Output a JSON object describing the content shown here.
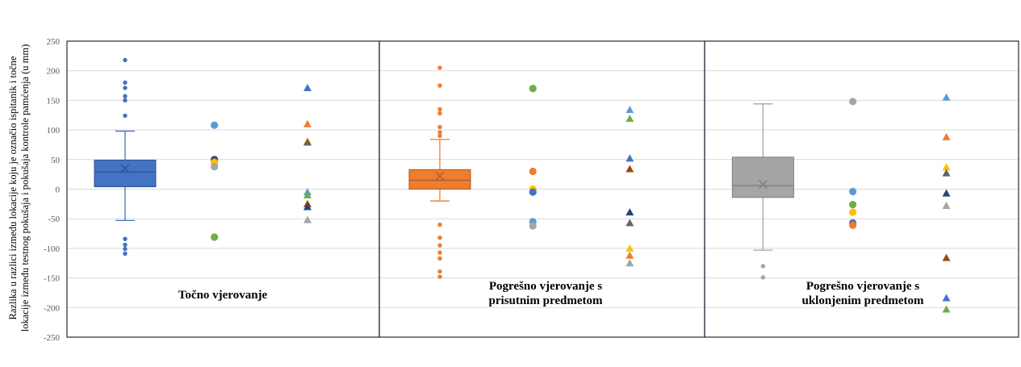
{
  "chart_data": {
    "type": "box_and_scatter",
    "ylabel_lines": [
      "Razlika u razlici između lokacije koju je označio ispitanik i točne",
      "lokacije između testnog pokušaja i pokušaja kontrole pamćenja (u mm)"
    ],
    "ylim": [
      -250,
      250
    ],
    "yticks": [
      250,
      200,
      150,
      100,
      50,
      0,
      -50,
      -100,
      -150,
      -200,
      -250
    ],
    "grid": true,
    "panels": [
      {
        "label_lines": [
          "Točno vjerovanje"
        ],
        "box": {
          "color": "#4472C4",
          "q1": 4,
          "median": 29,
          "q3": 49,
          "mean": 35,
          "whisker_low": -53,
          "whisker_high": 98,
          "outliers": [
            218,
            180,
            171,
            157,
            150,
            124,
            -84,
            -94,
            -101,
            -109
          ]
        },
        "circles": [
          {
            "value": 108,
            "color": "#5B9BD5"
          },
          {
            "value": 50,
            "color": "#264478"
          },
          {
            "value": 46,
            "color": "#ED7D31"
          },
          {
            "value": 44,
            "color": "#FFC000"
          },
          {
            "value": 38,
            "color": "#A5A5A5"
          },
          {
            "value": -81,
            "color": "#70AD47"
          }
        ],
        "triangles": [
          {
            "value": 171,
            "color": "#4472C4"
          },
          {
            "value": 110,
            "color": "#ED7D31"
          },
          {
            "value": 81,
            "color": "#FFC000"
          },
          {
            "value": 79,
            "color": "#636363"
          },
          {
            "value": -5,
            "color": "#5B9BD5"
          },
          {
            "value": -10,
            "color": "#70AD47"
          },
          {
            "value": -25,
            "color": "#9E480E"
          },
          {
            "value": -30,
            "color": "#264478"
          },
          {
            "value": -52,
            "color": "#A5A5A5"
          }
        ]
      },
      {
        "label_lines": [
          "Pogrešno vjerovanje  s",
          "prisutnim predmetom"
        ],
        "box": {
          "color": "#ED7D31",
          "q1": 0,
          "median": 15,
          "q3": 33,
          "mean": 22,
          "whisker_low": -20,
          "whisker_high": 84,
          "outliers": [
            205,
            175,
            135,
            128,
            105,
            96,
            90,
            -60,
            -82,
            -95,
            -107,
            -117,
            -139,
            -148
          ]
        },
        "circles": [
          {
            "value": 170,
            "color": "#70AD47"
          },
          {
            "value": 30,
            "color": "#ED7D31"
          },
          {
            "value": 0,
            "color": "#FFC000"
          },
          {
            "value": -5,
            "color": "#4472C4"
          },
          {
            "value": -55,
            "color": "#5B9BD5"
          },
          {
            "value": -62,
            "color": "#A5A5A5"
          }
        ],
        "triangles": [
          {
            "value": 134,
            "color": "#5B9BD5"
          },
          {
            "value": 119,
            "color": "#70AD47"
          },
          {
            "value": 52,
            "color": "#4472C4"
          },
          {
            "value": 34,
            "color": "#9E480E"
          },
          {
            "value": -39,
            "color": "#264478"
          },
          {
            "value": -57,
            "color": "#636363"
          },
          {
            "value": -100,
            "color": "#FFC000"
          },
          {
            "value": -112,
            "color": "#ED7D31"
          },
          {
            "value": -125,
            "color": "#A5A5A5"
          }
        ]
      },
      {
        "label_lines": [
          "Pogrešno vjerovanje  s",
          "uklonjenim predmetom"
        ],
        "box": {
          "color": "#A5A5A5",
          "q1": -14,
          "median": 6,
          "q3": 54,
          "mean": 8,
          "whisker_low": -103,
          "whisker_high": 144,
          "outliers": [
            -130,
            -149
          ]
        },
        "circles": [
          {
            "value": 148,
            "color": "#A5A5A5"
          },
          {
            "value": -4,
            "color": "#5B9BD5"
          },
          {
            "value": -26,
            "color": "#70AD47"
          },
          {
            "value": -39,
            "color": "#FFC000"
          },
          {
            "value": -57,
            "color": "#4472C4"
          },
          {
            "value": -61,
            "color": "#ED7D31"
          }
        ],
        "triangles": [
          {
            "value": 155,
            "color": "#5B9BD5"
          },
          {
            "value": 88,
            "color": "#ED7D31"
          },
          {
            "value": 37,
            "color": "#FFC000"
          },
          {
            "value": 27,
            "color": "#636363"
          },
          {
            "value": -7,
            "color": "#264478"
          },
          {
            "value": -28,
            "color": "#A5A5A5"
          },
          {
            "value": -116,
            "color": "#9E480E"
          },
          {
            "value": -184,
            "color": "#4472C4"
          },
          {
            "value": -203,
            "color": "#70AD47"
          }
        ]
      }
    ]
  }
}
